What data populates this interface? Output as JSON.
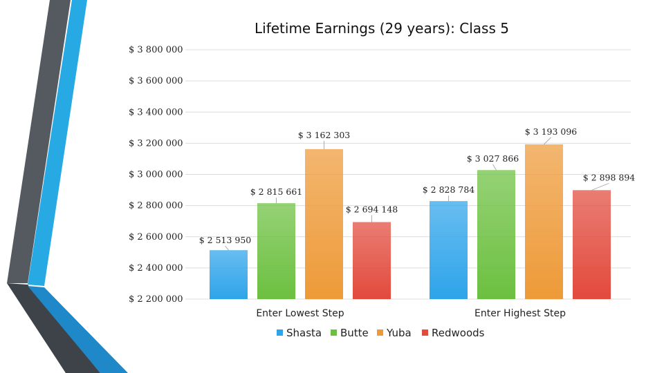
{
  "chart_data": {
    "type": "bar",
    "title": "Lifetime Earnings (29 years): Class 5",
    "categories": [
      "Enter Lowest Step",
      "Enter Highest Step"
    ],
    "series": [
      {
        "name": "Shasta",
        "values": [
          2513950,
          2828784
        ],
        "labels": [
          "$ 2 513 950",
          "$ 2 828 784"
        ],
        "color": "#2ea4ea"
      },
      {
        "name": "Butte",
        "values": [
          2815661,
          3027866
        ],
        "labels": [
          "$ 2 815 661",
          "$ 3 027 866"
        ],
        "color": "#6cc040"
      },
      {
        "name": "Yuba",
        "values": [
          3162303,
          3193096
        ],
        "labels": [
          "$ 3 162 303",
          "$ 3 193 096"
        ],
        "color": "#ee9a38"
      },
      {
        "name": "Redwoods",
        "values": [
          2694148,
          2898894
        ],
        "labels": [
          "$ 2 694 148",
          "$ 2 898 894"
        ],
        "color": "#e24a3c"
      }
    ],
    "yticks": [
      "$ 2 200 000",
      "$ 2 400 000",
      "$ 2 600 000",
      "$ 2 800 000",
      "$ 3 000 000",
      "$ 3 200 000",
      "$ 3 400 000",
      "$ 3 600 000",
      "$ 3 800 000"
    ],
    "ylim": [
      2200000,
      3800000
    ],
    "grid": true,
    "legend": "bottom"
  }
}
